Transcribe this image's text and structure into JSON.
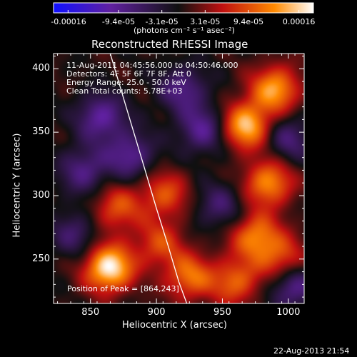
{
  "colorbar": {
    "tick_labels": [
      "-0.00016",
      "-9.4e-05",
      "-3.1e-05",
      "3.1e-05",
      "9.4e-05",
      "0.00016"
    ],
    "unit_label": "(photons cm⁻² s⁻¹ asec⁻²)",
    "range": [
      -0.00016,
      0.00016
    ],
    "colors": [
      "#1010ff",
      "#6020a0",
      "#101010",
      "#c01010",
      "#ff8a00",
      "#ffffff"
    ]
  },
  "chart_data": {
    "type": "heatmap",
    "title": "Reconstructed RHESSI Image",
    "xlabel": "Heliocentric X (arcsec)",
    "ylabel": "Heliocentric Y (arcsec)",
    "xlim": [
      822,
      1012
    ],
    "ylim": [
      215,
      412
    ],
    "x_ticks": [
      850,
      900,
      950,
      1000
    ],
    "y_ticks": [
      250,
      300,
      350,
      400
    ],
    "annotations": [
      "11-Aug-2011 04:45:56.000 to 04:50:46.000",
      "Detectors: 4F 5F 6F 7F 8F, Att 0",
      "Energy Range: 25.0 - 50.0 keV",
      "Clean    Total counts: 5.78E+03"
    ],
    "peak_label": "Position of Peak = [864,243]",
    "peak": [
      864,
      243
    ],
    "limb_curve": {
      "x": [
        865,
        877,
        890,
        900,
        909,
        917,
        923
      ],
      "y": [
        412,
        370,
        325,
        290,
        260,
        232,
        215
      ]
    },
    "bright_sources": [
      {
        "x": 864,
        "y": 243,
        "level": 1.0
      },
      {
        "x": 968,
        "y": 355,
        "level": 0.85
      },
      {
        "x": 990,
        "y": 384,
        "level": 0.75
      },
      {
        "x": 985,
        "y": 310,
        "level": 0.7
      },
      {
        "x": 975,
        "y": 268,
        "level": 0.65
      },
      {
        "x": 925,
        "y": 236,
        "level": 0.6
      },
      {
        "x": 960,
        "y": 232,
        "level": 0.55
      },
      {
        "x": 906,
        "y": 301,
        "level": 0.5
      },
      {
        "x": 870,
        "y": 290,
        "level": 0.5
      },
      {
        "x": 995,
        "y": 250,
        "level": 0.5
      },
      {
        "x": 902,
        "y": 262,
        "level": 0.45
      }
    ],
    "dark_regions": [
      {
        "x": 858,
        "y": 362,
        "level": -0.55
      },
      {
        "x": 880,
        "y": 332,
        "level": -0.5
      },
      {
        "x": 845,
        "y": 320,
        "level": -0.45
      },
      {
        "x": 935,
        "y": 352,
        "level": -0.5
      },
      {
        "x": 920,
        "y": 384,
        "level": -0.45
      },
      {
        "x": 1003,
        "y": 228,
        "level": -0.5
      },
      {
        "x": 1000,
        "y": 345,
        "level": -0.4
      },
      {
        "x": 838,
        "y": 270,
        "level": -0.35
      },
      {
        "x": 948,
        "y": 292,
        "level": -0.35
      }
    ]
  },
  "footer": {
    "date": "22-Aug-2013 21:54"
  }
}
